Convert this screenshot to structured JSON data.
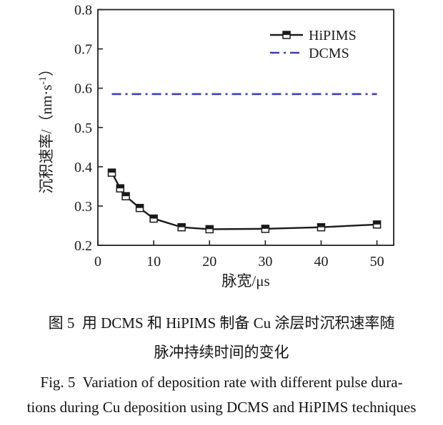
{
  "figure": {
    "caption_zh_line1": "图 5  用 DCMS 和 HiPIMS 制备 Cu 涂层时沉积速率随",
    "caption_zh_line2": "脉冲持续时间的变化",
    "caption_en_line1": "Fig. 5  Variation of deposition rate with different pulse dura-",
    "caption_en_line2": "tions during Cu deposition using DCMS and HiPIMS techniques"
  },
  "chart_data": {
    "type": "line",
    "title": "",
    "xlabel": "脉宽/μs",
    "ylabel": "沉积速率/（nm·s⁻¹）",
    "ylabel_parts": {
      "prefix": "沉积速率/（nm·s",
      "superscript": "-1",
      "suffix": "）"
    },
    "xlim": [
      0,
      53
    ],
    "ylim": [
      0.2,
      0.8
    ],
    "x_ticks": [
      0,
      10,
      20,
      30,
      40,
      50
    ],
    "y_ticks": [
      0.2,
      0.3,
      0.4,
      0.5,
      0.6,
      0.7,
      0.8
    ],
    "x_tick_labels": [
      "0",
      "10",
      "20",
      "30",
      "40",
      "50"
    ],
    "y_tick_labels": [
      "0.2",
      "0.3",
      "0.4",
      "0.5",
      "0.6",
      "0.7",
      "0.8"
    ],
    "grid": false,
    "legend": {
      "position": "top-right-inside",
      "entries": [
        "HiPIMS",
        "DCMS"
      ]
    },
    "x": [
      2.5,
      4,
      5,
      7.5,
      10,
      15,
      20,
      30,
      40,
      50
    ],
    "series": [
      {
        "name": "HiPIMS",
        "type": "line+marker",
        "marker": "square-half-filled",
        "line_style": "solid",
        "color": "#1a1a1a",
        "values": [
          0.385,
          0.345,
          0.325,
          0.295,
          0.268,
          0.246,
          0.241,
          0.242,
          0.246,
          0.253
        ]
      },
      {
        "name": "DCMS",
        "type": "line",
        "marker": "none",
        "line_style": "dash-dot",
        "color": "#3d3dae",
        "values": [
          0.585,
          0.585,
          0.585,
          0.585,
          0.585,
          0.585,
          0.585,
          0.585,
          0.585,
          0.585
        ]
      }
    ]
  }
}
